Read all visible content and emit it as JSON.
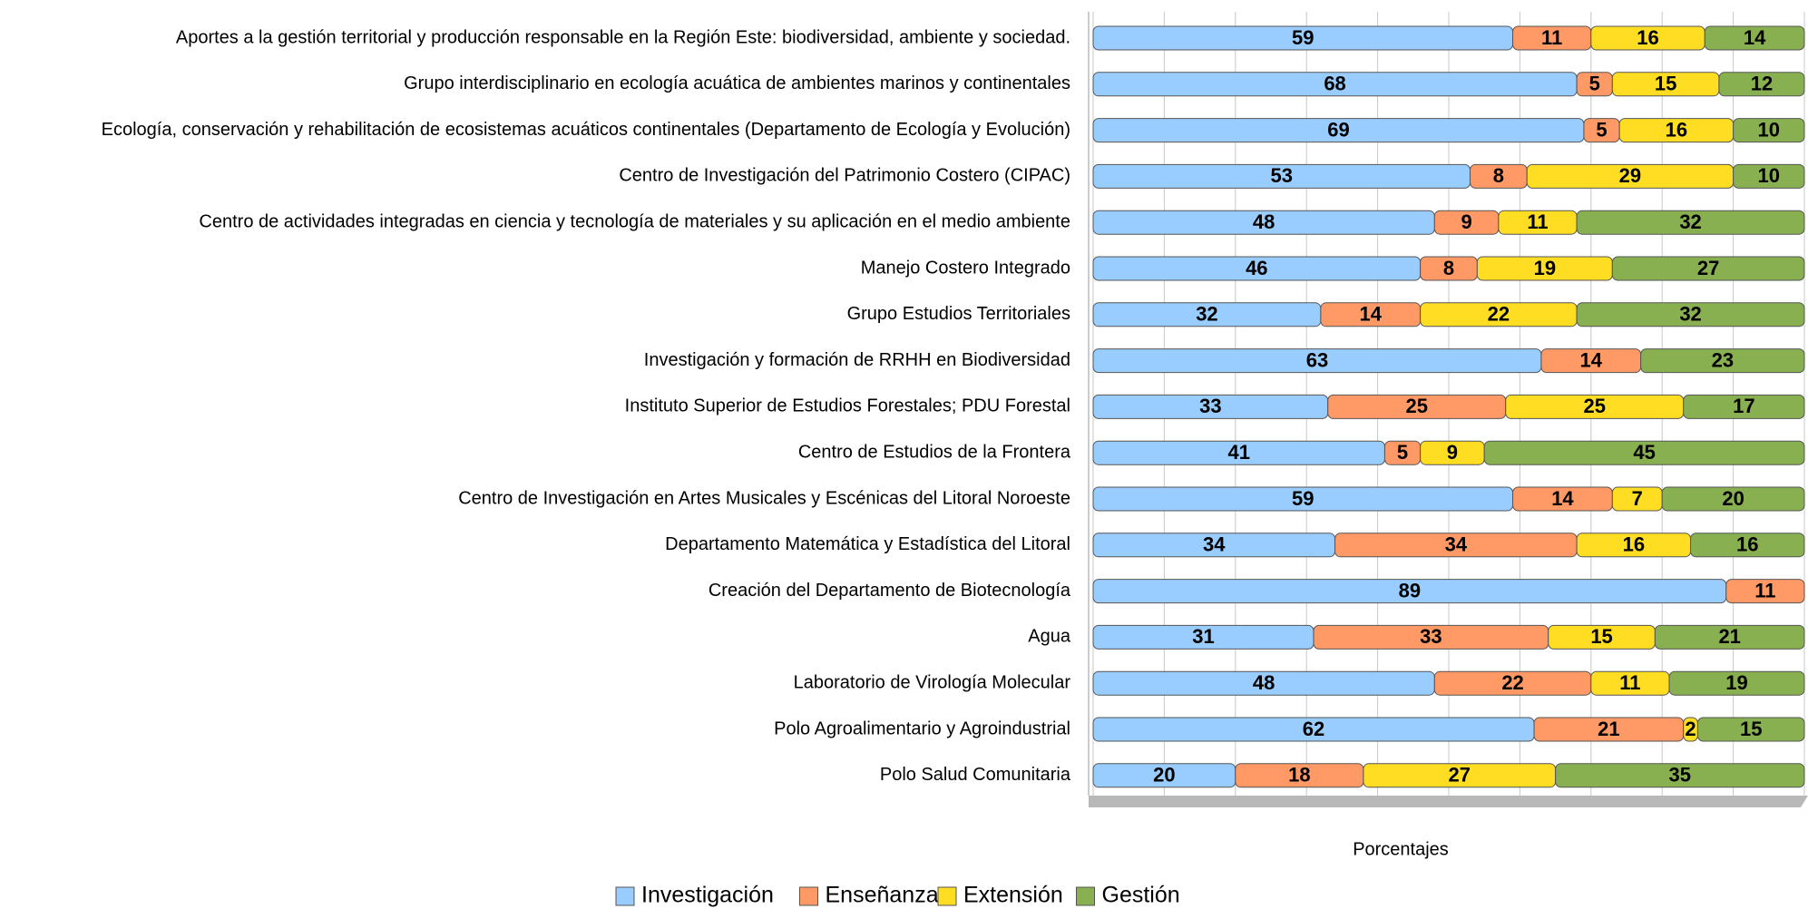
{
  "chart_data": {
    "type": "stacked-bar-horizontal",
    "categories": [
      "Aportes a la gestión territorial y producción responsable en la Región Este: biodiversidad, ambiente y sociedad.",
      "Grupo interdisciplinario en ecología acuática de ambientes marinos y continentales",
      "Ecología, conservación y rehabilitación de ecosistemas acuáticos continentales (Departamento de Ecología y Evolución)",
      "Centro de Investigación del Patrimonio Costero (CIPAC)",
      "Centro de actividades integradas en ciencia y tecnología de materiales y su aplicación en el medio ambiente",
      "Manejo Costero Integrado",
      "Grupo Estudios Territoriales",
      "Investigación y formación de RRHH en Biodiversidad",
      "Instituto Superior de Estudios Forestales; PDU Forestal",
      "Centro de Estudios de la Frontera",
      "Centro de Investigación en Artes Musicales y Escénicas del Litoral Noroeste",
      "Departamento Matemática y Estadística del Litoral",
      "Creación del Departamento de Biotecnología",
      "Agua",
      "Laboratorio de Virología Molecular",
      "Polo Agroalimentario y Agroindustrial",
      "Polo Salud Comunitaria"
    ],
    "series": [
      {
        "name": "Investigación",
        "color": "#99ccff",
        "values": [
          59,
          68,
          69,
          53,
          48,
          46,
          32,
          63,
          33,
          41,
          59,
          34,
          89,
          31,
          48,
          62,
          20
        ]
      },
      {
        "name": "Enseñanza",
        "color": "#ff9966",
        "values": [
          11,
          5,
          5,
          8,
          9,
          8,
          14,
          14,
          25,
          5,
          14,
          34,
          11,
          33,
          22,
          21,
          18
        ]
      },
      {
        "name": "Extensión",
        "color": "#ffdd22",
        "values": [
          16,
          15,
          16,
          29,
          11,
          19,
          22,
          null,
          25,
          9,
          7,
          16,
          null,
          15,
          11,
          2,
          27
        ]
      },
      {
        "name": "Gestión",
        "color": "#88b050",
        "values": [
          14,
          12,
          10,
          10,
          32,
          27,
          32,
          23,
          17,
          45,
          20,
          16,
          null,
          21,
          19,
          15,
          35
        ]
      }
    ],
    "xlabel": "Porcentajes",
    "xlim": [
      0,
      100
    ],
    "xticks": [
      0,
      10,
      20,
      30,
      40,
      50,
      60,
      70,
      80,
      90,
      100
    ],
    "grid": true,
    "legend": "bottom"
  }
}
